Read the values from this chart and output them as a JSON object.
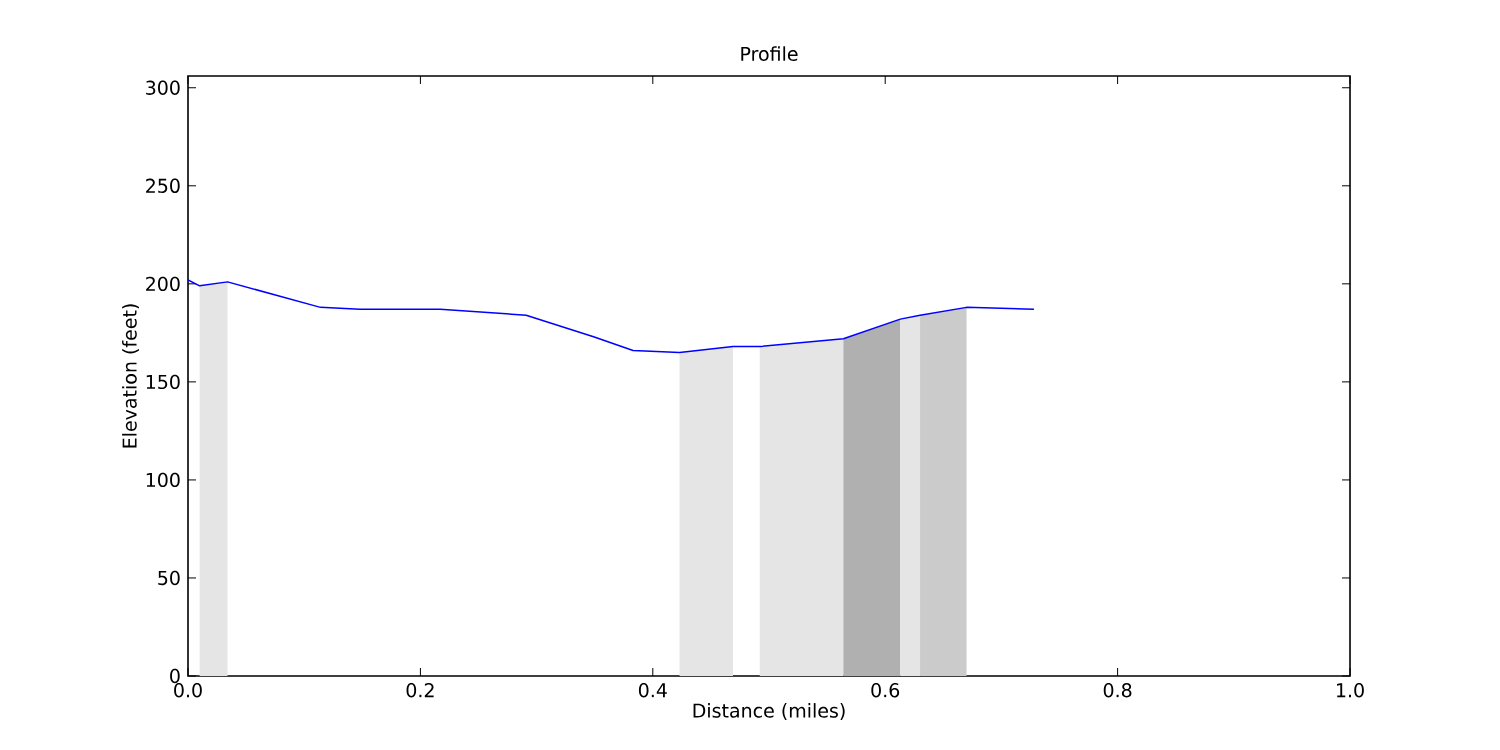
{
  "chart_data": {
    "type": "line",
    "title": "Profile",
    "xlabel": "Distance (miles)",
    "ylabel": "Elevation (feet)",
    "xlim": [
      0,
      1
    ],
    "ylim": [
      0,
      306
    ],
    "xticks": [
      {
        "value": 0,
        "label": "0.0"
      },
      {
        "value": 0.2,
        "label": "0.2"
      },
      {
        "value": 0.4,
        "label": "0.4"
      },
      {
        "value": 0.6,
        "label": "0.6"
      },
      {
        "value": 0.8,
        "label": "0.8"
      },
      {
        "value": 1,
        "label": "1.0"
      }
    ],
    "yticks": [
      0,
      50,
      100,
      150,
      200,
      250,
      300
    ],
    "series": [
      {
        "type": "area",
        "color": "#e5e5e5",
        "x": [
          0.01,
          0.034
        ],
        "values": [
          199,
          201
        ]
      },
      {
        "type": "area",
        "color": "#e5e5e5",
        "x": [
          0.423,
          0.469
        ],
        "values": [
          165,
          168
        ]
      },
      {
        "type": "area",
        "color": "#e5e5e5",
        "x": [
          0.492,
          0.564
        ],
        "values": [
          168,
          172
        ]
      },
      {
        "type": "area",
        "color": "#b0b0b0",
        "x": [
          0.564,
          0.613
        ],
        "values": [
          172,
          182
        ]
      },
      {
        "type": "area",
        "color": "#e5e5e5",
        "x": [
          0.613,
          0.63
        ],
        "values": [
          182,
          184
        ]
      },
      {
        "type": "area",
        "color": "#cbcbcb",
        "x": [
          0.63,
          0.67
        ],
        "values": [
          184,
          188
        ]
      },
      {
        "color": "#0000ff",
        "x": [
          0,
          0.01,
          0.034,
          0.114,
          0.148,
          0.217,
          0.291,
          0.349,
          0.383,
          0.423,
          0.469,
          0.492,
          0.564,
          0.613,
          0.63,
          0.67,
          0.728
        ],
        "values": [
          202,
          199,
          201,
          188,
          187,
          187,
          184,
          173,
          166,
          165,
          168,
          168,
          172,
          182,
          184,
          188,
          187
        ]
      }
    ]
  }
}
